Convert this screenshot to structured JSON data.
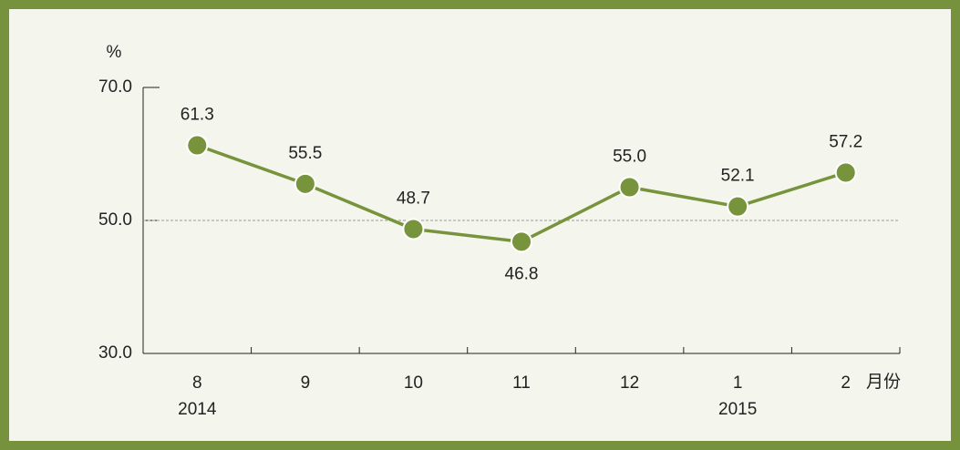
{
  "chart_data": {
    "type": "line",
    "y_axis_label": "%",
    "x_axis_label": "月份",
    "categories": [
      "8",
      "9",
      "10",
      "11",
      "12",
      "1",
      "2"
    ],
    "year_labels": [
      "2014",
      null,
      null,
      null,
      null,
      "2015",
      null
    ],
    "series": [
      {
        "name": null,
        "color": "#77933c",
        "values": [
          61.3,
          55.5,
          48.7,
          46.8,
          55.0,
          52.1,
          57.2
        ],
        "value_labels": [
          "61.3",
          "55.5",
          "48.7",
          "46.8",
          "55.0",
          "52.1",
          "57.2"
        ]
      }
    ],
    "ylim": [
      30,
      70
    ],
    "yticks": [
      {
        "value": 30,
        "label": "30.0"
      },
      {
        "value": 50,
        "label": "50.0"
      },
      {
        "value": 70,
        "label": "70.0"
      }
    ],
    "reference_line": 50,
    "grid": false
  }
}
